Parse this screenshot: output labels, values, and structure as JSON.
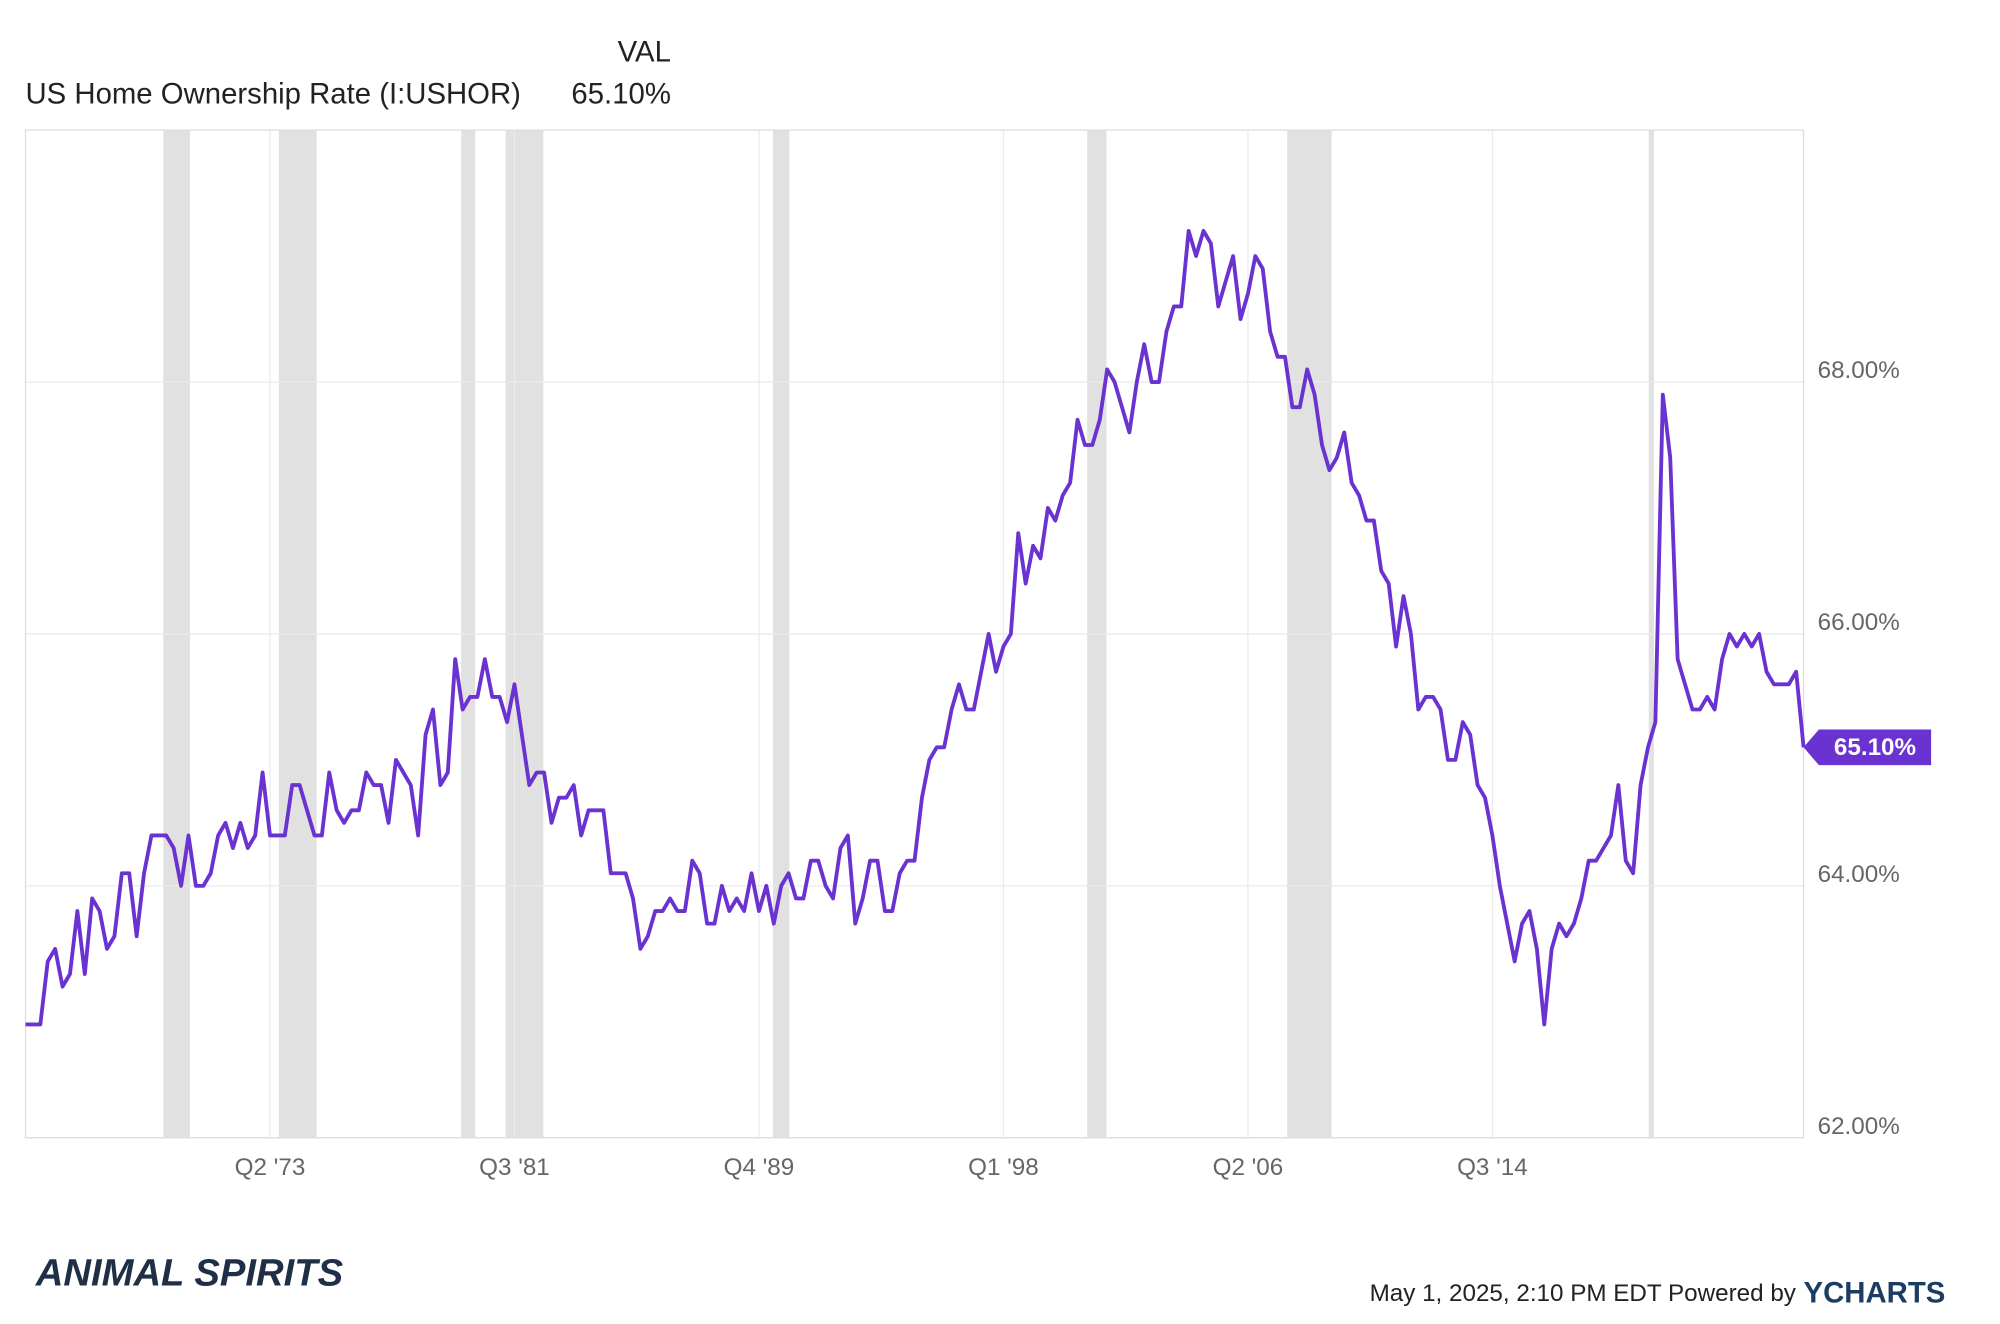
{
  "chart_data": {
    "type": "line",
    "value_column_label": "VAL",
    "last_value_label": "65.10%",
    "categories": [
      null,
      null,
      null,
      null,
      null,
      null,
      null,
      null,
      null,
      null,
      null,
      null,
      null,
      null,
      null,
      null,
      null,
      null,
      null,
      null,
      null,
      null,
      null,
      null,
      null,
      null,
      null,
      null,
      null,
      null,
      null,
      null,
      null,
      "Q2 '73",
      null,
      null,
      null,
      null,
      null,
      null,
      null,
      null,
      null,
      null,
      null,
      null,
      null,
      null,
      null,
      null,
      null,
      null,
      null,
      null,
      null,
      null,
      null,
      null,
      null,
      null,
      null,
      null,
      null,
      null,
      null,
      null,
      "Q3 '81",
      null,
      null,
      null,
      null,
      null,
      null,
      null,
      null,
      null,
      null,
      null,
      null,
      null,
      null,
      null,
      null,
      null,
      null,
      null,
      null,
      null,
      null,
      null,
      null,
      null,
      null,
      null,
      null,
      null,
      null,
      null,
      null,
      "Q4 '89",
      null,
      null,
      null,
      null,
      null,
      null,
      null,
      null,
      null,
      null,
      null,
      null,
      null,
      null,
      null,
      null,
      null,
      null,
      null,
      null,
      null,
      null,
      null,
      null,
      null,
      null,
      null,
      null,
      null,
      null,
      null,
      null,
      "Q1 '98",
      null,
      null,
      null,
      null,
      null,
      null,
      null,
      null,
      null,
      null,
      null,
      null,
      null,
      null,
      null,
      null,
      null,
      null,
      null,
      null,
      null,
      null,
      null,
      null,
      null,
      null,
      null,
      null,
      null,
      null,
      null,
      null,
      "Q2 '06",
      null,
      null,
      null,
      null,
      null,
      null,
      null,
      null,
      null,
      null,
      null,
      null,
      null,
      null,
      null,
      null,
      null,
      null,
      null,
      null,
      null,
      null,
      null,
      null,
      null,
      null,
      null,
      null,
      null,
      null,
      null,
      null,
      "Q3 '14",
      null,
      null,
      null,
      null,
      null,
      null,
      null,
      null,
      null,
      null,
      null,
      null,
      null,
      null,
      null,
      null,
      null,
      null,
      null,
      null,
      null,
      null,
      null,
      null,
      null,
      null,
      null,
      null,
      null,
      null,
      null,
      null,
      null,
      null,
      null,
      null,
      null,
      null,
      null,
      null,
      null,
      null
    ],
    "series": [
      {
        "name": "US Home Ownership Rate (I:USHOR)",
        "color": "#6a32d0",
        "values": [
          62.9,
          62.9,
          62.9,
          63.4,
          63.5,
          63.2,
          63.3,
          63.8,
          63.3,
          63.9,
          63.8,
          63.5,
          63.6,
          64.1,
          64.1,
          63.6,
          64.1,
          64.4,
          64.4,
          64.4,
          64.3,
          64.0,
          64.4,
          64.0,
          64.0,
          64.1,
          64.4,
          64.5,
          64.3,
          64.5,
          64.3,
          64.4,
          64.9,
          64.4,
          64.4,
          64.4,
          64.8,
          64.8,
          64.6,
          64.4,
          64.4,
          64.9,
          64.6,
          64.5,
          64.6,
          64.6,
          64.9,
          64.8,
          64.8,
          64.5,
          65.0,
          64.9,
          64.8,
          64.4,
          65.2,
          65.4,
          64.8,
          64.9,
          65.8,
          65.4,
          65.5,
          65.5,
          65.8,
          65.5,
          65.5,
          65.3,
          65.6,
          65.2,
          64.8,
          64.9,
          64.9,
          64.5,
          64.7,
          64.7,
          64.8,
          64.4,
          64.6,
          64.6,
          64.6,
          64.1,
          64.1,
          64.1,
          63.9,
          63.5,
          63.6,
          63.8,
          63.8,
          63.9,
          63.8,
          63.8,
          64.2,
          64.1,
          63.7,
          63.7,
          64.0,
          63.8,
          63.9,
          63.8,
          64.1,
          63.8,
          64.0,
          63.7,
          64.0,
          64.1,
          63.9,
          63.9,
          64.2,
          64.2,
          64.0,
          63.9,
          64.3,
          64.4,
          63.7,
          63.9,
          64.2,
          64.2,
          63.8,
          63.8,
          64.1,
          64.2,
          64.2,
          64.7,
          65.0,
          65.1,
          65.1,
          65.4,
          65.6,
          65.4,
          65.4,
          65.7,
          66.0,
          65.7,
          65.9,
          66.0,
          66.8,
          66.4,
          66.7,
          66.6,
          67.0,
          66.9,
          67.1,
          67.2,
          67.7,
          67.5,
          67.5,
          67.7,
          68.1,
          68.0,
          67.8,
          67.6,
          68.0,
          68.3,
          68.0,
          68.0,
          68.4,
          68.6,
          68.6,
          69.2,
          69.0,
          69.2,
          69.1,
          68.6,
          68.8,
          69.0,
          68.5,
          68.7,
          69.0,
          68.9,
          68.4,
          68.2,
          68.2,
          67.8,
          67.8,
          68.1,
          67.9,
          67.5,
          67.3,
          67.4,
          67.6,
          67.2,
          67.1,
          66.9,
          66.9,
          66.5,
          66.4,
          65.9,
          66.3,
          66.0,
          65.4,
          65.5,
          65.5,
          65.4,
          65.0,
          65.0,
          65.3,
          65.2,
          64.8,
          64.7,
          64.4,
          64.0,
          63.7,
          63.4,
          63.7,
          63.8,
          63.5,
          62.9,
          63.5,
          63.7,
          63.6,
          63.7,
          63.9,
          64.2,
          64.2,
          64.3,
          64.4,
          64.8,
          64.2,
          64.1,
          64.8,
          65.1,
          65.3,
          67.9,
          67.4,
          65.8,
          65.6,
          65.4,
          65.4,
          65.5,
          65.4,
          65.8,
          66.0,
          65.9,
          66.0,
          65.9,
          66.0,
          65.7,
          65.6,
          65.6,
          65.6,
          65.7,
          65.1
        ]
      }
    ],
    "recessions": [
      [
        18.6,
        22.2
      ],
      [
        34.2,
        39.3
      ],
      [
        58.8,
        60.7
      ],
      [
        64.8,
        69.9
      ],
      [
        100.9,
        103.1
      ],
      [
        143.3,
        145.9
      ],
      [
        170.3,
        176.3
      ],
      [
        219.1,
        219.8
      ]
    ],
    "ylim": [
      62,
      70
    ],
    "yticks": [
      {
        "value": 62,
        "label": "62.00%"
      },
      {
        "value": 64,
        "label": "64.00%"
      },
      {
        "value": 66,
        "label": "66.00%"
      },
      {
        "value": 68,
        "label": "68.00%"
      }
    ],
    "grid": true,
    "recession_color": "#e1e1e1"
  },
  "footer": {
    "brand": "ANIMAL SPIRITS",
    "timestamp": "May 1, 2025, 2:10 PM EDT Powered by",
    "logo": "YCHARTS"
  }
}
